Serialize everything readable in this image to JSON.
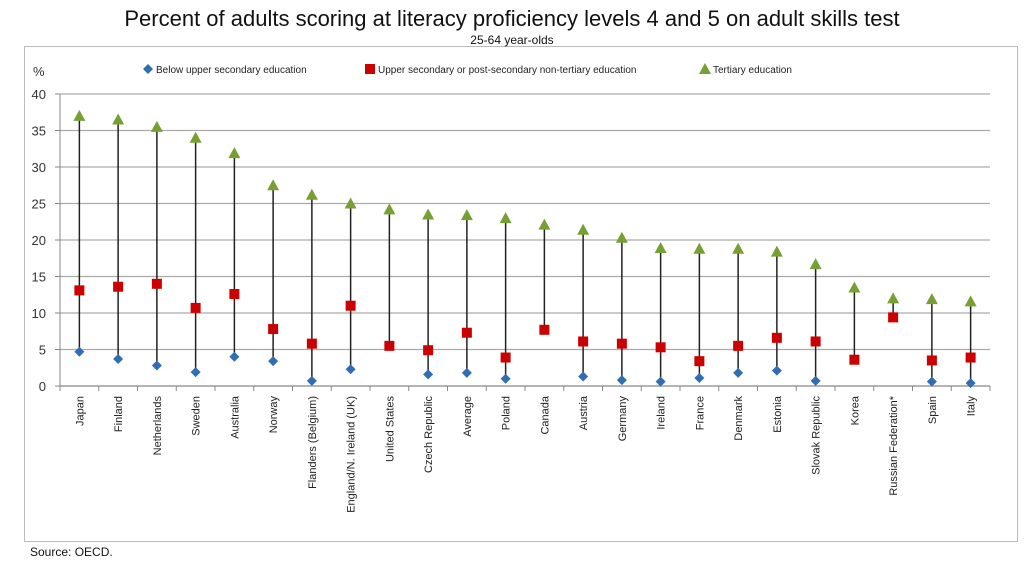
{
  "chart_data": {
    "type": "scatter",
    "title": "Percent of adults scoring at literacy proficiency levels 4 and 5 on adult skills test",
    "subtitle": "25-64 year-olds",
    "ylabel": "%",
    "ylim": [
      0,
      40
    ],
    "yticks": [
      "0",
      "5",
      "10",
      "15",
      "20",
      "25",
      "30",
      "35",
      "40"
    ],
    "grid": true,
    "legend_position": "top",
    "categories": [
      "Japan",
      "Finland",
      "Netherlands",
      "Sweden",
      "Australia",
      "Norway",
      "Flanders (Belgium)",
      "England/N. Ireland (UK)",
      "United States",
      "Czech Republic",
      "Average",
      "Poland",
      "Canada",
      "Austria",
      "Germany",
      "Ireland",
      "France",
      "Denmark",
      "Estonia",
      "Slovak Republic",
      "Korea",
      "Russian Federation*",
      "Spain",
      "Italy"
    ],
    "series": [
      {
        "name": "Below upper secondary education",
        "marker": "diamond",
        "color": "#2f6db5",
        "values": [
          4.7,
          3.7,
          2.8,
          1.9,
          4.0,
          3.4,
          0.7,
          2.3,
          null,
          1.6,
          1.8,
          1.0,
          null,
          1.3,
          0.8,
          0.6,
          1.1,
          1.8,
          2.1,
          0.7,
          null,
          null,
          0.6,
          0.4
        ]
      },
      {
        "name": "Upper secondary or post-secondary non-tertiary education",
        "marker": "square",
        "color": "#cc0000",
        "values": [
          13.1,
          13.6,
          14.0,
          10.7,
          12.6,
          7.8,
          5.8,
          11.0,
          5.5,
          4.9,
          7.3,
          3.9,
          7.7,
          6.1,
          5.8,
          5.3,
          3.4,
          5.5,
          6.6,
          6.1,
          3.6,
          9.4,
          3.5,
          3.9
        ]
      },
      {
        "name": "Tertiary education",
        "marker": "triangle",
        "color": "#77a032",
        "values": [
          37.0,
          36.5,
          35.5,
          34.0,
          31.9,
          27.5,
          26.2,
          25.0,
          24.2,
          23.5,
          23.4,
          23.0,
          22.1,
          21.4,
          20.3,
          18.9,
          18.8,
          18.8,
          18.4,
          16.7,
          13.5,
          12.0,
          11.9,
          11.6
        ]
      }
    ]
  },
  "source": "Source: OECD."
}
